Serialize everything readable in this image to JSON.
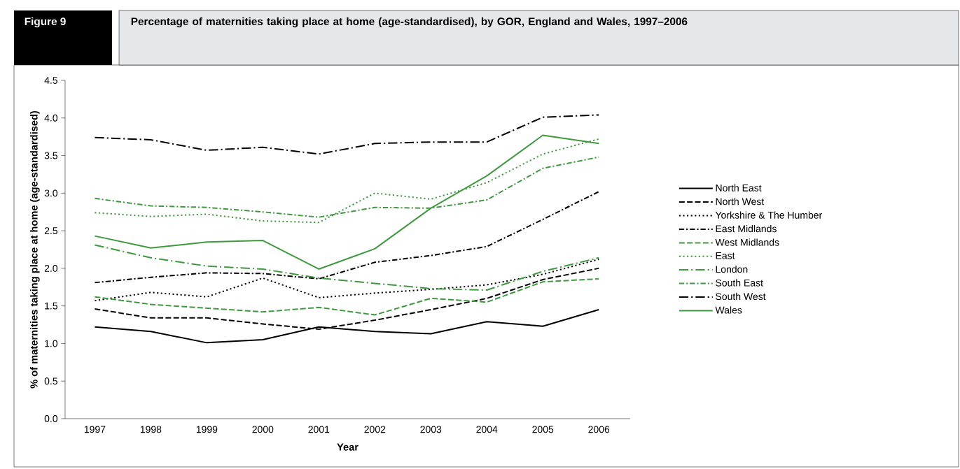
{
  "chart_data": {
    "type": "line",
    "title": "Percentage of maternities taking place at home (age-standardised), by GOR, England and Wales, 1997–2006",
    "annotations": [
      "Figure 9"
    ],
    "xlabel": "Year",
    "ylabel": "% of maternities taking place at home (age-standardised)",
    "categories": [
      "1997",
      "1998",
      "1999",
      "2000",
      "2001",
      "2002",
      "2003",
      "2004",
      "2005",
      "2006"
    ],
    "ylim": [
      0,
      4.5
    ],
    "yticks": [
      {
        "value": 0,
        "label": "0.0"
      },
      {
        "value": 0.5,
        "label": "0.5"
      },
      {
        "value": 1,
        "label": "1.0"
      },
      {
        "value": 1.5,
        "label": "1.5"
      },
      {
        "value": 2,
        "label": "2.0"
      },
      {
        "value": 2.5,
        "label": "2.5"
      },
      {
        "value": 3,
        "label": "3.0"
      },
      {
        "value": 3.5,
        "label": "3.5"
      },
      {
        "value": 4,
        "label": "4.0"
      },
      {
        "value": 4.5,
        "label": "4.5"
      }
    ],
    "legend": "right",
    "grid": false,
    "series": [
      {
        "name": "North East",
        "color": "#000000",
        "line_style": "solid",
        "values": [
          1.22,
          1.16,
          1.01,
          1.05,
          1.22,
          1.16,
          1.13,
          1.29,
          1.23,
          1.45
        ]
      },
      {
        "name": "North West",
        "color": "#000000",
        "line_style": "dashed",
        "values": [
          1.46,
          1.34,
          1.34,
          1.26,
          1.19,
          1.31,
          1.45,
          1.6,
          1.85,
          2.0
        ]
      },
      {
        "name": "Yorkshire & The Humber",
        "color": "#000000",
        "line_style": "dotted",
        "values": [
          1.57,
          1.68,
          1.62,
          1.87,
          1.61,
          1.67,
          1.72,
          1.78,
          1.92,
          2.12
        ]
      },
      {
        "name": "East Midlands",
        "color": "#000000",
        "line_style": "dashdot",
        "values": [
          1.81,
          1.88,
          1.94,
          1.93,
          1.86,
          2.08,
          2.17,
          2.29,
          2.65,
          3.02
        ]
      },
      {
        "name": "West Midlands",
        "color": "#3f9a3f",
        "line_style": "dashed",
        "values": [
          1.62,
          1.52,
          1.47,
          1.42,
          1.48,
          1.38,
          1.6,
          1.55,
          1.82,
          1.86
        ]
      },
      {
        "name": "East",
        "color": "#3f9a3f",
        "line_style": "dotted",
        "values": [
          2.74,
          2.69,
          2.72,
          2.63,
          2.61,
          3.0,
          2.92,
          3.14,
          3.52,
          3.72
        ]
      },
      {
        "name": "London",
        "color": "#3f9a3f",
        "line_style": "longdashdot",
        "values": [
          2.31,
          2.14,
          2.03,
          1.99,
          1.87,
          1.8,
          1.73,
          1.71,
          1.96,
          2.14
        ]
      },
      {
        "name": "South East",
        "color": "#3f9a3f",
        "line_style": "dashdot",
        "values": [
          2.93,
          2.83,
          2.81,
          2.75,
          2.68,
          2.81,
          2.8,
          2.91,
          3.33,
          3.48
        ]
      },
      {
        "name": "South West",
        "color": "#000000",
        "line_style": "longdashdot",
        "values": [
          3.74,
          3.71,
          3.57,
          3.61,
          3.52,
          3.66,
          3.68,
          3.68,
          4.01,
          4.04
        ]
      },
      {
        "name": "Wales",
        "color": "#3f9a3f",
        "line_style": "solid",
        "values": [
          2.43,
          2.27,
          2.35,
          2.37,
          1.99,
          2.26,
          2.8,
          3.23,
          3.77,
          3.66
        ]
      }
    ]
  }
}
